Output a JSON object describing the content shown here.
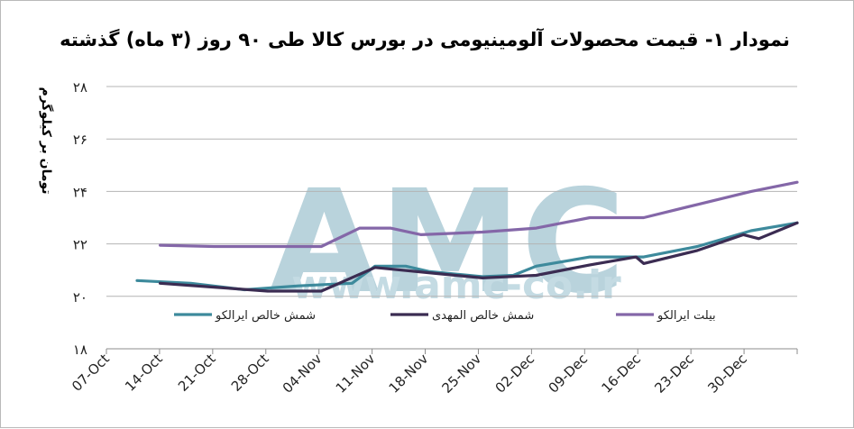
{
  "watermark": {
    "logo": "AMC",
    "url": "www.amc-co.ir"
  },
  "chart_data": {
    "type": "line",
    "title": "نمودار ۱- قیمت محصولات آلومینیومی در بورس کالا طی ۹۰ روز (۳ ماه) گذشته",
    "xlabel": "",
    "ylabel": "تومان بر کیلوگرم",
    "ylim": [
      18,
      28
    ],
    "yticks": [
      18,
      20,
      22,
      24,
      26,
      28
    ],
    "ytick_labels": [
      "۱۸",
      "۲۰",
      "۲۲",
      "۲۴",
      "۲۶",
      "۲۸"
    ],
    "categories": [
      "07-Oct",
      "14-Oct",
      "21-Oct",
      "28-Oct",
      "04-Nov",
      "11-Nov",
      "18-Nov",
      "25-Nov",
      "02-Dec",
      "09-Dec",
      "16-Dec",
      "23-Dec",
      "30-Dec"
    ],
    "x_start": "2014-10-07",
    "x_end": "2015-01-05",
    "grid": true,
    "legend_position": "bottom-inside",
    "series": [
      {
        "name": "شمش خالص ایرالکو",
        "color": "#3d8a9c",
        "points": [
          [
            "2014-10-11",
            20.6
          ],
          [
            "2014-10-18",
            20.5
          ],
          [
            "2014-10-25",
            20.25
          ],
          [
            "2014-11-01",
            20.4
          ],
          [
            "2014-11-08",
            20.5
          ],
          [
            "2014-11-11",
            21.15
          ],
          [
            "2014-11-15",
            21.15
          ],
          [
            "2014-11-18",
            20.95
          ],
          [
            "2014-11-25",
            20.75
          ],
          [
            "2014-11-29",
            20.8
          ],
          [
            "2014-12-02",
            21.15
          ],
          [
            "2014-12-09",
            21.5
          ],
          [
            "2014-12-14",
            21.5
          ],
          [
            "2014-12-16",
            21.5
          ],
          [
            "2014-12-23",
            21.9
          ],
          [
            "2014-12-30",
            22.5
          ],
          [
            "2015-01-05",
            22.8
          ]
        ]
      },
      {
        "name": "شمش خالص المهدی",
        "color": "#3b2c52",
        "points": [
          [
            "2014-10-14",
            20.5
          ],
          [
            "2014-10-21",
            20.35
          ],
          [
            "2014-10-28",
            20.2
          ],
          [
            "2014-11-04",
            20.2
          ],
          [
            "2014-11-11",
            21.1
          ],
          [
            "2014-11-18",
            20.9
          ],
          [
            "2014-11-25",
            20.7
          ],
          [
            "2014-12-02",
            20.8
          ],
          [
            "2014-12-09",
            21.2
          ],
          [
            "2014-12-15",
            21.5
          ],
          [
            "2014-12-16",
            21.25
          ],
          [
            "2014-12-23",
            21.75
          ],
          [
            "2014-12-29",
            22.35
          ],
          [
            "2014-12-31",
            22.2
          ],
          [
            "2015-01-05",
            22.8
          ]
        ]
      },
      {
        "name": "بیلت ایرالکو",
        "color": "#8467a8",
        "points": [
          [
            "2014-10-14",
            21.95
          ],
          [
            "2014-10-21",
            21.9
          ],
          [
            "2014-10-28",
            21.9
          ],
          [
            "2014-11-04",
            21.9
          ],
          [
            "2014-11-09",
            22.6
          ],
          [
            "2014-11-13",
            22.6
          ],
          [
            "2014-11-17",
            22.35
          ],
          [
            "2014-11-25",
            22.45
          ],
          [
            "2014-12-02",
            22.6
          ],
          [
            "2014-12-09",
            23.0
          ],
          [
            "2014-12-16",
            23.0
          ],
          [
            "2014-12-23",
            23.5
          ],
          [
            "2014-12-30",
            24.0
          ],
          [
            "2015-01-05",
            24.35
          ]
        ]
      }
    ]
  }
}
